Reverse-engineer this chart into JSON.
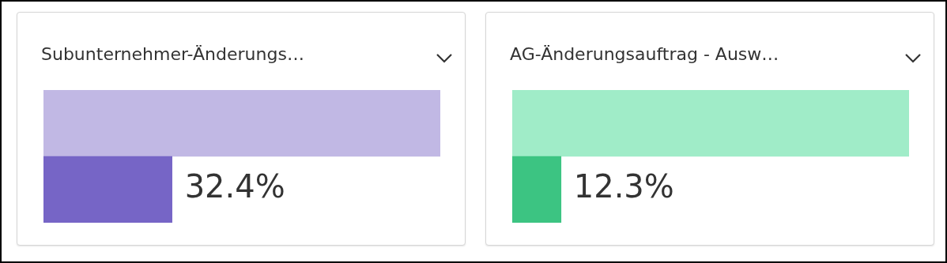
{
  "chart_data": [
    {
      "type": "bar",
      "orientation": "horizontal",
      "title": "Subunternehmer-Änderungs…",
      "categories": [
        null,
        null
      ],
      "values": [
        100,
        32.4
      ],
      "colors": [
        "#c1b8e4",
        "#7665c6"
      ],
      "xlim": [
        0,
        100
      ],
      "tick_labels": false,
      "value_labels": [
        null,
        "32.4%"
      ]
    },
    {
      "type": "bar",
      "orientation": "horizontal",
      "title": "AG-Änderungsauftrag - Ausw…",
      "categories": [
        null,
        null
      ],
      "values": [
        100,
        12.3
      ],
      "colors": [
        "#a0ecc8",
        "#3cc482"
      ],
      "xlim": [
        0,
        100
      ],
      "tick_labels": false,
      "value_labels": [
        null,
        "12.3%"
      ]
    }
  ]
}
